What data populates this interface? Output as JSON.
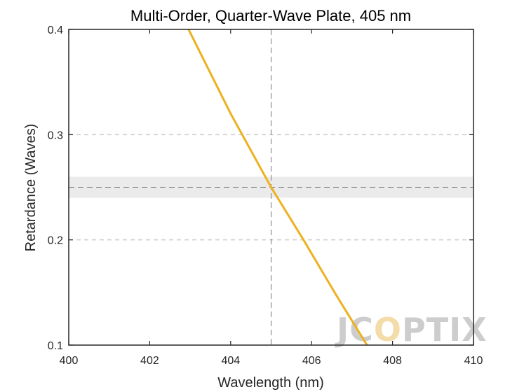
{
  "chart_data": {
    "type": "line",
    "title": "Multi-Order, Quarter-Wave Plate, 405 nm",
    "xlabel": "Wavelength (nm)",
    "ylabel": "Retardance (Waves)",
    "xlim": [
      400,
      410
    ],
    "ylim": [
      0.1,
      0.4
    ],
    "xticks": [
      "400",
      "402",
      "404",
      "406",
      "408",
      "410"
    ],
    "yticks": [
      "0.1",
      "0.2",
      "0.3",
      "0.4"
    ],
    "y_gridlines": [
      0.2,
      0.3
    ],
    "grid": "dashed, horizontal only",
    "target_band": {
      "center": 0.25,
      "low": 0.24,
      "high": 0.26
    },
    "design_wavelength": 405,
    "series": [
      {
        "color": "#EDB120",
        "x": [
          402.96,
          404.0,
          405.0,
          405.8,
          406.6,
          407.37
        ],
        "y": [
          0.4,
          0.32,
          0.25,
          0.2,
          0.148,
          0.1
        ]
      }
    ],
    "watermark": "JCOPTIX",
    "colors": {
      "line": "#EDB120",
      "band": "#ebebeb",
      "axis": "#262626",
      "grid": "#cccccc"
    }
  }
}
